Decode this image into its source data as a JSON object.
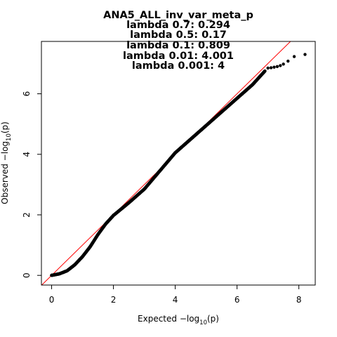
{
  "chart_data": {
    "type": "scatter",
    "title": "ANA5_ALL_inv_var_meta_p",
    "subtitle_lines": [
      "lambda 0.7: 0.294",
      "lambda 0.5: 0.17",
      "lambda 0.1: 0.809",
      "lambda 0.01: 4.001",
      "lambda 0.001: 4"
    ],
    "xlabel": {
      "prefix": "Expected  −log",
      "sub": "10",
      "suffix": "(p)"
    },
    "ylabel": {
      "prefix": "Observed  −log",
      "sub": "10",
      "suffix": "(p)"
    },
    "xlim": [
      -0.33,
      8.53
    ],
    "ylim": [
      -0.32,
      7.73
    ],
    "x_ticks": [
      0,
      2,
      4,
      6,
      8
    ],
    "y_ticks": [
      0,
      2,
      4,
      6
    ],
    "reference_line": {
      "slope": 1,
      "intercept": 0,
      "color": "#ff0000"
    },
    "point_color": "#000000",
    "curve_anchors": [
      {
        "x": 0.0,
        "y": 0.0
      },
      {
        "x": 0.25,
        "y": 0.05
      },
      {
        "x": 0.5,
        "y": 0.15
      },
      {
        "x": 0.75,
        "y": 0.35
      },
      {
        "x": 1.0,
        "y": 0.62
      },
      {
        "x": 1.25,
        "y": 0.95
      },
      {
        "x": 1.5,
        "y": 1.35
      },
      {
        "x": 1.75,
        "y": 1.7
      },
      {
        "x": 2.0,
        "y": 1.98
      },
      {
        "x": 2.5,
        "y": 2.4
      },
      {
        "x": 3.0,
        "y": 2.85
      },
      {
        "x": 3.5,
        "y": 3.45
      },
      {
        "x": 4.0,
        "y": 4.05
      },
      {
        "x": 4.5,
        "y": 4.5
      },
      {
        "x": 5.0,
        "y": 4.95
      },
      {
        "x": 5.5,
        "y": 5.4
      },
      {
        "x": 6.0,
        "y": 5.85
      },
      {
        "x": 6.5,
        "y": 6.3
      },
      {
        "x": 6.9,
        "y": 6.75
      }
    ],
    "tail_points": [
      {
        "x": 7.0,
        "y": 6.85
      },
      {
        "x": 7.1,
        "y": 6.86
      },
      {
        "x": 7.2,
        "y": 6.88
      },
      {
        "x": 7.3,
        "y": 6.9
      },
      {
        "x": 7.4,
        "y": 6.93
      },
      {
        "x": 7.5,
        "y": 6.98
      },
      {
        "x": 7.65,
        "y": 7.08
      },
      {
        "x": 7.85,
        "y": 7.23
      },
      {
        "x": 8.2,
        "y": 7.3
      }
    ]
  }
}
